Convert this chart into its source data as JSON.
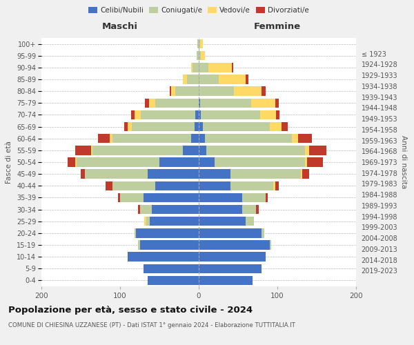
{
  "age_groups": [
    "0-4",
    "5-9",
    "10-14",
    "15-19",
    "20-24",
    "25-29",
    "30-34",
    "35-39",
    "40-44",
    "45-49",
    "50-54",
    "55-59",
    "60-64",
    "65-69",
    "70-74",
    "75-79",
    "80-84",
    "85-89",
    "90-94",
    "95-99",
    "100+"
  ],
  "birth_years": [
    "2019-2023",
    "2014-2018",
    "2009-2013",
    "2004-2008",
    "1999-2003",
    "1994-1998",
    "1989-1993",
    "1984-1988",
    "1979-1983",
    "1974-1978",
    "1969-1973",
    "1964-1968",
    "1959-1963",
    "1954-1958",
    "1949-1953",
    "1944-1948",
    "1939-1943",
    "1934-1938",
    "1929-1933",
    "1924-1928",
    "≤ 1923"
  ],
  "male_celibi": [
    65,
    70,
    90,
    75,
    80,
    62,
    60,
    70,
    55,
    65,
    50,
    20,
    10,
    5,
    4,
    0,
    0,
    0,
    0,
    0,
    0
  ],
  "male_coniugati": [
    0,
    0,
    0,
    2,
    2,
    5,
    15,
    30,
    55,
    80,
    105,
    115,
    100,
    80,
    70,
    55,
    30,
    15,
    8,
    3,
    2
  ],
  "male_vedovi": [
    0,
    0,
    0,
    0,
    0,
    2,
    0,
    0,
    0,
    0,
    2,
    2,
    3,
    5,
    8,
    8,
    5,
    5,
    2,
    0,
    0
  ],
  "male_divorziati": [
    0,
    0,
    0,
    0,
    0,
    0,
    2,
    3,
    8,
    5,
    10,
    20,
    15,
    5,
    4,
    5,
    2,
    0,
    0,
    0,
    0
  ],
  "female_celibi": [
    68,
    80,
    85,
    90,
    80,
    60,
    55,
    55,
    40,
    40,
    20,
    10,
    8,
    5,
    3,
    2,
    0,
    0,
    0,
    0,
    0
  ],
  "female_coniugati": [
    0,
    0,
    0,
    2,
    3,
    10,
    18,
    30,
    55,
    90,
    115,
    125,
    110,
    85,
    75,
    65,
    45,
    25,
    12,
    3,
    2
  ],
  "female_vedovi": [
    0,
    0,
    0,
    0,
    0,
    0,
    0,
    0,
    2,
    2,
    3,
    5,
    8,
    15,
    20,
    30,
    35,
    35,
    30,
    5,
    3
  ],
  "female_divorziati": [
    0,
    0,
    0,
    0,
    0,
    0,
    3,
    3,
    5,
    8,
    20,
    22,
    18,
    8,
    5,
    5,
    5,
    3,
    2,
    0,
    0
  ],
  "colors": {
    "celibi": "#4472C4",
    "coniugati": "#BFCE9E",
    "vedovi": "#FFD966",
    "divorziati": "#C0392B"
  },
  "title": "Popolazione per età, sesso e stato civile - 2024",
  "subtitle": "COMUNE DI CHIESINA UZZANESE (PT) - Dati ISTAT 1° gennaio 2024 - Elaborazione TUTTITALIA.IT",
  "xlabel_left": "Maschi",
  "xlabel_right": "Femmine",
  "ylabel_left": "Fasce di età",
  "ylabel_right": "Anni di nascita",
  "xlim": 200,
  "bg_color": "#f0f0f0",
  "plot_bg": "#ffffff",
  "grid_color": "#bbbbbb"
}
